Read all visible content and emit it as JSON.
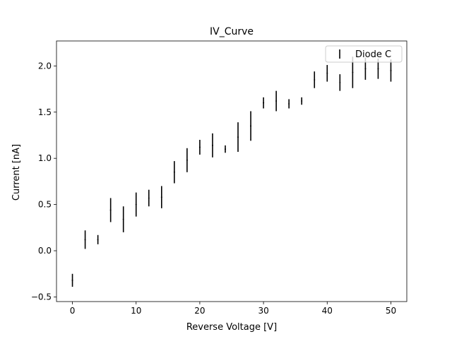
{
  "chart_data": {
    "type": "scatter",
    "title": "IV_Curve",
    "xlabel": "Reverse Voltage [V]",
    "ylabel": "Current [nA]",
    "xlim": [
      -2.5,
      52.5
    ],
    "ylim": [
      -0.55,
      2.27
    ],
    "xticks": [
      0,
      10,
      20,
      30,
      40,
      50
    ],
    "yticks": [
      -0.5,
      0.0,
      0.5,
      1.0,
      1.5,
      2.0
    ],
    "xtick_labels": [
      "0",
      "10",
      "20",
      "30",
      "40",
      "50"
    ],
    "ytick_labels": [
      "−0.5",
      "0.0",
      "0.5",
      "1.0",
      "1.5",
      "2.0"
    ],
    "grid": false,
    "legend_position": "top-right",
    "series": [
      {
        "name": "Diode C",
        "color": "#000000",
        "x": [
          0,
          2,
          4,
          6,
          8,
          10,
          12,
          14,
          16,
          18,
          20,
          22,
          24,
          26,
          28,
          30,
          32,
          34,
          36,
          38,
          40,
          42,
          44,
          46,
          48,
          50
        ],
        "y": [
          -0.32,
          0.12,
          0.12,
          0.44,
          0.34,
          0.5,
          0.57,
          0.58,
          0.85,
          0.98,
          1.12,
          1.14,
          1.1,
          1.23,
          1.35,
          1.6,
          1.62,
          1.59,
          1.62,
          1.85,
          1.92,
          1.82,
          1.93,
          1.97,
          1.97,
          1.95
        ],
        "yerr": [
          0.07,
          0.1,
          0.05,
          0.13,
          0.14,
          0.13,
          0.09,
          0.12,
          0.12,
          0.13,
          0.08,
          0.13,
          0.04,
          0.16,
          0.16,
          0.06,
          0.11,
          0.05,
          0.04,
          0.09,
          0.09,
          0.09,
          0.17,
          0.12,
          0.11,
          0.12
        ]
      }
    ]
  }
}
